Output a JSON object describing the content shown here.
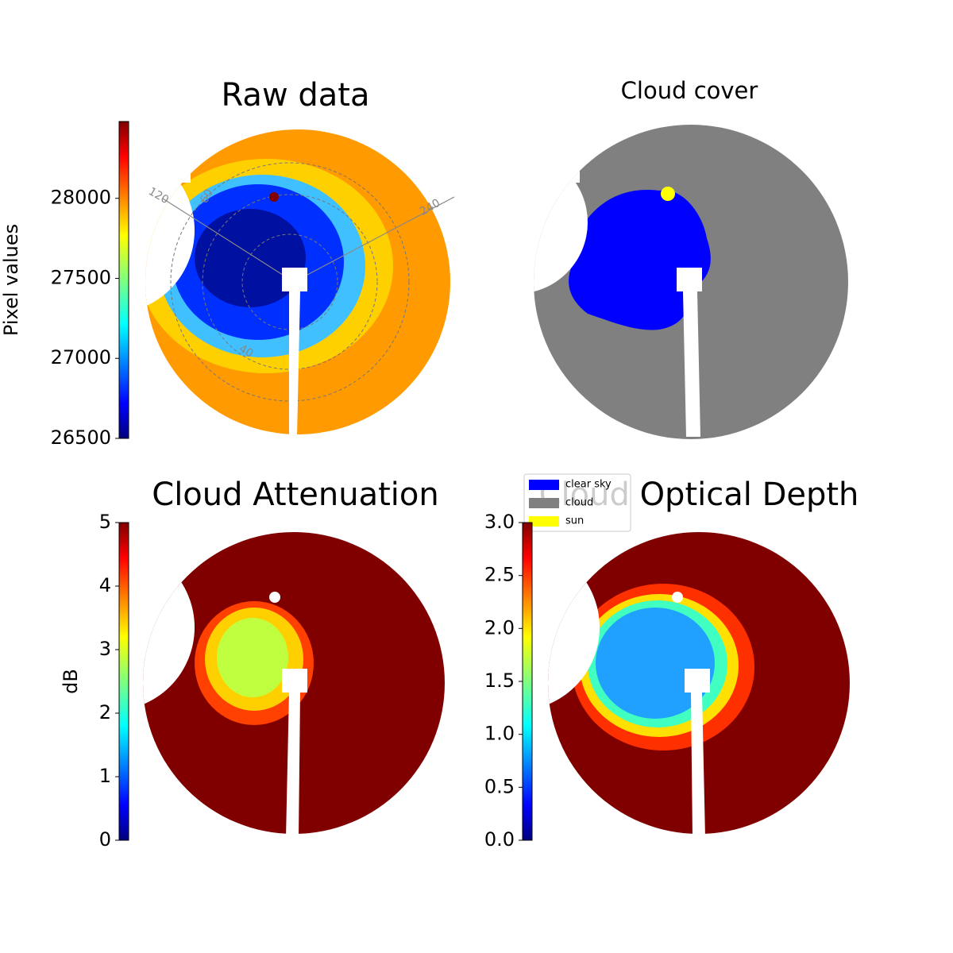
{
  "chart_data": [
    {
      "type": "image",
      "title": "Raw data",
      "colorbar": {
        "colormap": "jet",
        "label": "Pixel values",
        "lim": [
          26500,
          28480
        ],
        "ticks": [
          26500,
          27000,
          27500,
          28000
        ]
      },
      "polar_labels": [
        "120",
        "60",
        "240",
        "40"
      ]
    },
    {
      "type": "image",
      "title": "Cloud cover",
      "legend": [
        {
          "name": "clear sky",
          "color": "#0000ff"
        },
        {
          "name": "cloud",
          "color": "#808080"
        },
        {
          "name": "sun",
          "color": "#ffff00"
        }
      ]
    },
    {
      "type": "image",
      "title": "Cloud Attenuation",
      "colorbar": {
        "colormap": "jet",
        "label": "dB",
        "lim": [
          0,
          5
        ],
        "ticks": [
          0,
          1,
          2,
          3,
          4,
          5
        ]
      }
    },
    {
      "type": "image",
      "title": "Cloud Optical Depth",
      "colorbar": {
        "colormap": "jet",
        "lim": [
          0,
          3
        ],
        "ticks": [
          {
            "value": 0,
            "label": "0.0"
          },
          {
            "value": 0.5,
            "label": "0.5"
          },
          {
            "value": 1,
            "label": "1.0"
          },
          {
            "value": 1.5,
            "label": "1.5"
          },
          {
            "value": 2,
            "label": "2.0"
          },
          {
            "value": 2.5,
            "label": "2.5"
          },
          {
            "value": 3,
            "label": "3.0"
          }
        ]
      }
    }
  ]
}
